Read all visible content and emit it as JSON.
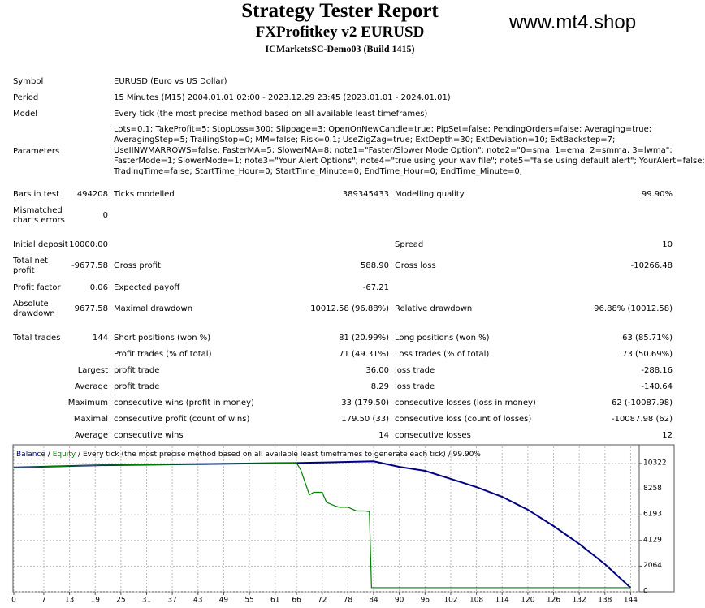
{
  "header": {
    "title": "Strategy Tester Report",
    "subtitle": "FXProfitkey v2 EURUSD",
    "server": "ICMarketsSC-Demo03 (Build 1415)",
    "watermark": "www.mt4.shop"
  },
  "summary": [
    {
      "label": "Symbol",
      "value": "EURUSD (Euro vs US Dollar)"
    },
    {
      "label": "Period",
      "value": "15 Minutes (M15) 2004.01.01 02:00 - 2023.12.29 23:45 (2023.01.01 - 2024.01.01)"
    },
    {
      "label": "Model",
      "value": "Every tick (the most precise method based on all available least timeframes)"
    }
  ],
  "parameters": {
    "label": "Parameters",
    "lines": [
      "Lots=0.1; TakeProfit=5; StopLoss=300; Slippage=3; OpenOnNewCandle=true; PipSet=false; PendingOrders=false; Averaging=true;",
      "AveragingStep=5; TrailingStop=0; MM=false; Risk=0.1; UseZigZag=true; ExtDepth=30; ExtDeviation=10; ExtBackstep=7;",
      "UseIINWMARROWS=false; FasterMA=5; SlowerMA=8; note1=\"Faster/Slower Mode Option\"; note2=\"0=sma, 1=ema, 2=smma, 3=lwma\";",
      "FasterMode=1; SlowerMode=1; note3=\"Your Alert Options\"; note4=\"true using your wav file\"; note5=\"false using default alert\"; YourAlert=false;",
      "TradingTime=false; StartTime_Hour=0; StartTime_Minute=0; EndTime_Hour=0; EndTime_Minute=0;"
    ]
  },
  "stats": [
    {
      "label1": "Bars in test",
      "value1": "494208",
      "label2": "Ticks modelled",
      "value2": "389345433",
      "label3": "Modelling quality",
      "value3": "99.90%"
    },
    {
      "label1": "Mismatched charts errors",
      "value1": "0"
    },
    {
      "label1": "Initial deposit",
      "value1": "10000.00",
      "label3": "Spread",
      "value3": "10"
    },
    {
      "label1": "Total net profit",
      "value1": "-9677.58",
      "label2": "Gross profit",
      "value2": "588.90",
      "label3": "Gross loss",
      "value3": "-10266.48"
    },
    {
      "label1": "Profit factor",
      "value1": "0.06",
      "label2": "Expected payoff",
      "value2": "-67.21"
    },
    {
      "label1": "Absolute drawdown",
      "value1": "9677.58",
      "label2": "Maximal drawdown",
      "value2": "10012.58 (96.88%)",
      "label3": "Relative drawdown",
      "value3": "96.88% (10012.58)"
    },
    {
      "label1": "Total trades",
      "value1": "144",
      "label2": "Short positions (won %)",
      "value2": "81 (20.99%)",
      "label3": "Long positions (won %)",
      "value3": "63 (85.71%)"
    },
    {
      "label2": "Profit trades (% of total)",
      "value2": "71 (49.31%)",
      "label3": "Loss trades (% of total)",
      "value3": "73 (50.69%)"
    },
    {
      "label1": "Largest",
      "label2": "profit trade",
      "value2": "36.00",
      "label3": "loss trade",
      "value3": "-288.16"
    },
    {
      "label1": "Average",
      "label2": "profit trade",
      "value2": "8.29",
      "label3": "loss trade",
      "value3": "-140.64"
    },
    {
      "label1": "Maximum",
      "label2": "consecutive wins (profit in money)",
      "value2": "33 (179.50)",
      "label3": "consecutive losses (loss in money)",
      "value3": "62 (-10087.98)"
    },
    {
      "label1": "Maximal",
      "label2": "consecutive profit (count of wins)",
      "value2": "179.50 (33)",
      "label3": "consecutive loss (count of losses)",
      "value3": "-10087.98 (62)"
    },
    {
      "label1": "Average",
      "label2": "consecutive wins",
      "value2": "14",
      "label3": "consecutive losses",
      "value3": "12"
    }
  ],
  "chart_data": {
    "type": "line",
    "separator": "/",
    "legend_note": "Every tick (the most precise method based on all available least timeframes to generate each tick)",
    "quality": "99.90%",
    "xlim": [
      0,
      146
    ],
    "ylim": [
      0,
      11690
    ],
    "grid": true,
    "xticks": [
      0,
      7,
      13,
      19,
      25,
      31,
      37,
      43,
      49,
      55,
      61,
      66,
      72,
      78,
      84,
      90,
      96,
      102,
      108,
      114,
      120,
      126,
      132,
      138,
      144
    ],
    "yticks": [
      0,
      2064,
      4129,
      6193,
      8258,
      10322
    ],
    "series": [
      {
        "name": "Balance",
        "color": "#000080",
        "x": [
          0,
          10,
          20,
          30,
          40,
          50,
          60,
          66,
          72,
          78,
          84,
          90,
          96,
          102,
          108,
          114,
          120,
          126,
          132,
          138,
          144
        ],
        "values": [
          10000,
          10090,
          10180,
          10220,
          10260,
          10300,
          10340,
          10360,
          10400,
          10450,
          10500,
          10050,
          9730,
          9080,
          8420,
          7640,
          6600,
          5290,
          3850,
          2220,
          322
        ]
      },
      {
        "name": "Equity",
        "color": "#008000",
        "x": [
          0,
          20,
          40,
          60,
          66,
          67,
          69,
          70,
          72,
          73,
          75,
          76,
          78,
          80,
          82,
          83,
          83.5,
          84,
          144
        ],
        "values": [
          10000,
          10180,
          10260,
          10340,
          10360,
          9800,
          7800,
          8000,
          8000,
          7200,
          6900,
          6800,
          6800,
          6500,
          6500,
          6450,
          330,
          330,
          330
        ]
      }
    ]
  }
}
